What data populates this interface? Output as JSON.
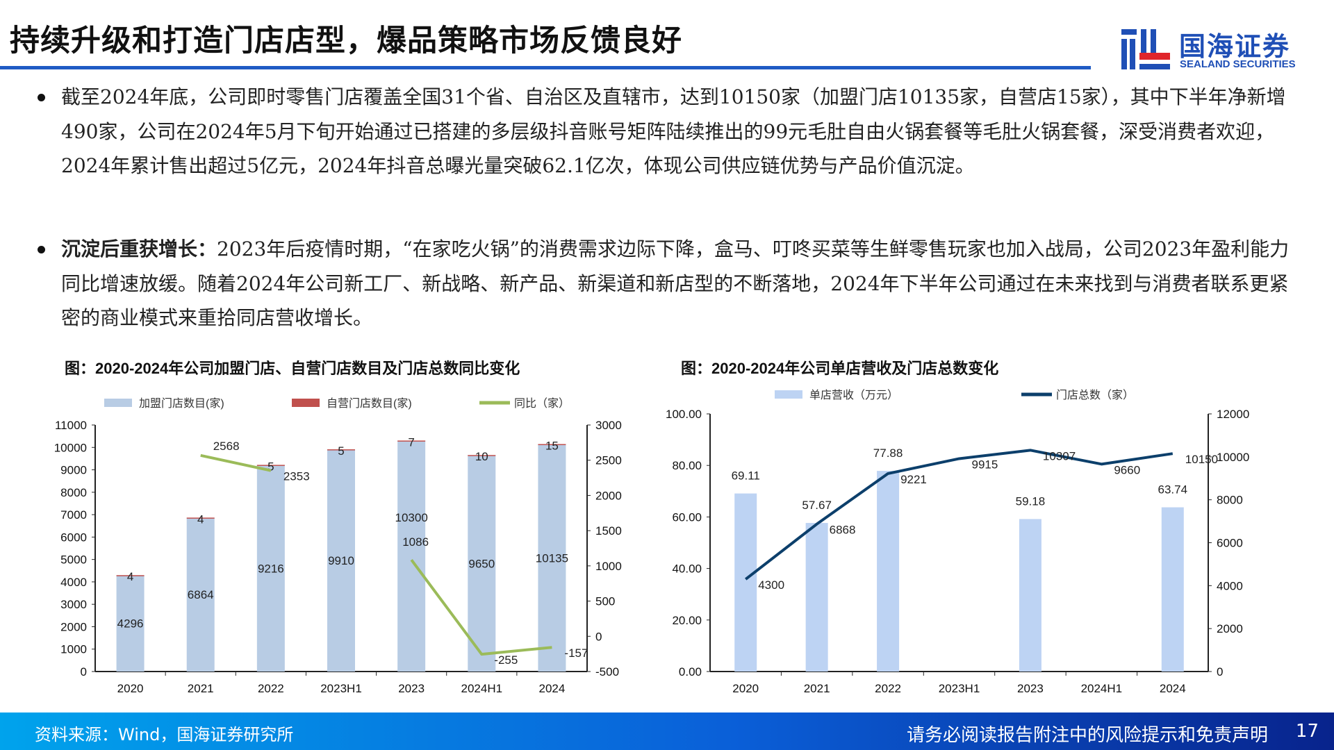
{
  "header": {
    "title": "持续升级和打造门店店型，爆品策略市场反馈良好",
    "logo_cn": "国海证券",
    "logo_en": "SEALAND SECURITIES"
  },
  "bullets": [
    {
      "lead": "",
      "text": "截至2024年底，公司即时零售门店覆盖全国31个省、自治区及直辖市，达到10150家（加盟门店10135家，自营店15家），其中下半年净新增490家，公司在2024年5月下旬开始通过已搭建的多层级抖音账号矩阵陆续推出的99元毛肚自由火锅套餐等毛肚火锅套餐，深受消费者欢迎，2024年累计售出超过5亿元，2024年抖音总曝光量突破62.1亿次，体现公司供应链优势与产品价值沉淀。"
    },
    {
      "lead": "沉淀后重获增长：",
      "text": "2023年后疫情时期，“在家吃火锅”的消费需求边际下降，盒马、叮咚买菜等生鲜零售玩家也加入战局，公司2023年盈利能力同比增速放缓。随着2024年公司新工厂、新战略、新产品、新渠道和新店型的不断落地，2024年下半年公司通过在未来找到与消费者联系更紧密的商业模式来重拾同店营收增长。"
    }
  ],
  "chart_data": [
    {
      "type": "bar",
      "title": "图：2020-2024年公司加盟门店、自营门店数目及门店总数同比变化",
      "categories": [
        "2020",
        "2021",
        "2022",
        "2023H1",
        "2023",
        "2024H1",
        "2024"
      ],
      "series": [
        {
          "name": "加盟门店数目(家)",
          "kind": "stacked-bar",
          "axis": "left",
          "color": "#b8cce4",
          "values": [
            4296,
            6864,
            9216,
            9910,
            10300,
            9650,
            10135
          ]
        },
        {
          "name": "自营门店数目(家)",
          "kind": "stacked-bar",
          "axis": "left",
          "color": "#c0504d",
          "values": [
            4,
            4,
            5,
            5,
            7,
            10,
            15
          ]
        },
        {
          "name": "同比（家）",
          "kind": "line",
          "axis": "right",
          "color": "#9bbb59",
          "values": [
            null,
            2568,
            2353,
            null,
            1086,
            -255,
            -157
          ]
        }
      ],
      "ylim": [
        0,
        11000
      ],
      "yticks": [
        0,
        1000,
        2000,
        3000,
        4000,
        5000,
        6000,
        7000,
        8000,
        9000,
        10000,
        11000
      ],
      "y2lim": [
        -500,
        3000
      ],
      "y2ticks": [
        -500,
        0,
        500,
        1000,
        1500,
        2000,
        2500,
        3000
      ],
      "legend": "top"
    },
    {
      "type": "bar",
      "title": "图：2020-2024年公司单店营收及门店总数变化",
      "categories": [
        "2020",
        "2021",
        "2022",
        "2023H1",
        "2023",
        "2024H1",
        "2024"
      ],
      "series": [
        {
          "name": "单店营收（万元）",
          "kind": "bar",
          "axis": "left",
          "color": "#bdd3f3",
          "values": [
            69.11,
            57.67,
            77.88,
            null,
            59.18,
            null,
            63.74
          ]
        },
        {
          "name": "门店总数（家）",
          "kind": "line",
          "axis": "right",
          "color": "#0c3f6b",
          "values": [
            4300,
            6868,
            9221,
            9915,
            10307,
            9660,
            10150
          ]
        }
      ],
      "ylim": [
        0,
        100
      ],
      "yticks": [
        "0.00",
        "20.00",
        "40.00",
        "60.00",
        "80.00",
        "100.00"
      ],
      "y2lim": [
        0,
        12000
      ],
      "y2ticks": [
        0,
        2000,
        4000,
        6000,
        8000,
        10000,
        12000
      ],
      "legend": "top"
    }
  ],
  "footer": {
    "source": "资料来源：Wind，国海证券研究所",
    "disclaimer": "请务必阅读报告附注中的风险提示和免责声明",
    "page": "17"
  }
}
